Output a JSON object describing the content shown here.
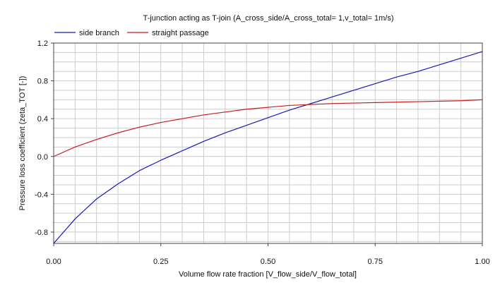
{
  "chart_data": {
    "type": "line",
    "title": "T-junction acting as T-join (A_cross_side/A_cross_total= 1,v_total= 1m/s)",
    "xlabel": "Volume flow rate fraction [V_flow_side/V_flow_total]",
    "ylabel": "Pressure loss coefficient (zeta_TOT [-])",
    "xlim": [
      0,
      1
    ],
    "ylim": [
      -0.92,
      1.2
    ],
    "x_ticks": [
      "0.00",
      "0.25",
      "0.50",
      "0.75",
      "1.00"
    ],
    "x_tick_values": [
      0,
      0.25,
      0.5,
      0.75,
      1
    ],
    "y_ticks": [
      "1.2",
      "0.8",
      "0.4",
      "0.0",
      "-0.4",
      "-0.8"
    ],
    "y_tick_values": [
      1.2,
      0.8,
      0.4,
      0.0,
      -0.4,
      -0.8
    ],
    "grid": true,
    "legend_position": "top-left",
    "x": [
      0,
      0.05,
      0.1,
      0.15,
      0.2,
      0.25,
      0.3,
      0.35,
      0.4,
      0.45,
      0.5,
      0.55,
      0.6,
      0.65,
      0.7,
      0.75,
      0.8,
      0.85,
      0.9,
      0.95,
      1.0
    ],
    "series": [
      {
        "name": "side branch",
        "color": "#1a1ab4",
        "values": [
          -0.92,
          -0.66,
          -0.45,
          -0.29,
          -0.15,
          -0.04,
          0.06,
          0.16,
          0.25,
          0.33,
          0.41,
          0.49,
          0.56,
          0.63,
          0.7,
          0.77,
          0.84,
          0.9,
          0.97,
          1.04,
          1.11
        ]
      },
      {
        "name": "straight passage",
        "color": "#c81e1e",
        "values": [
          0.0,
          0.1,
          0.18,
          0.25,
          0.31,
          0.36,
          0.4,
          0.44,
          0.47,
          0.5,
          0.52,
          0.54,
          0.55,
          0.56,
          0.565,
          0.57,
          0.575,
          0.58,
          0.585,
          0.59,
          0.6
        ]
      }
    ]
  }
}
